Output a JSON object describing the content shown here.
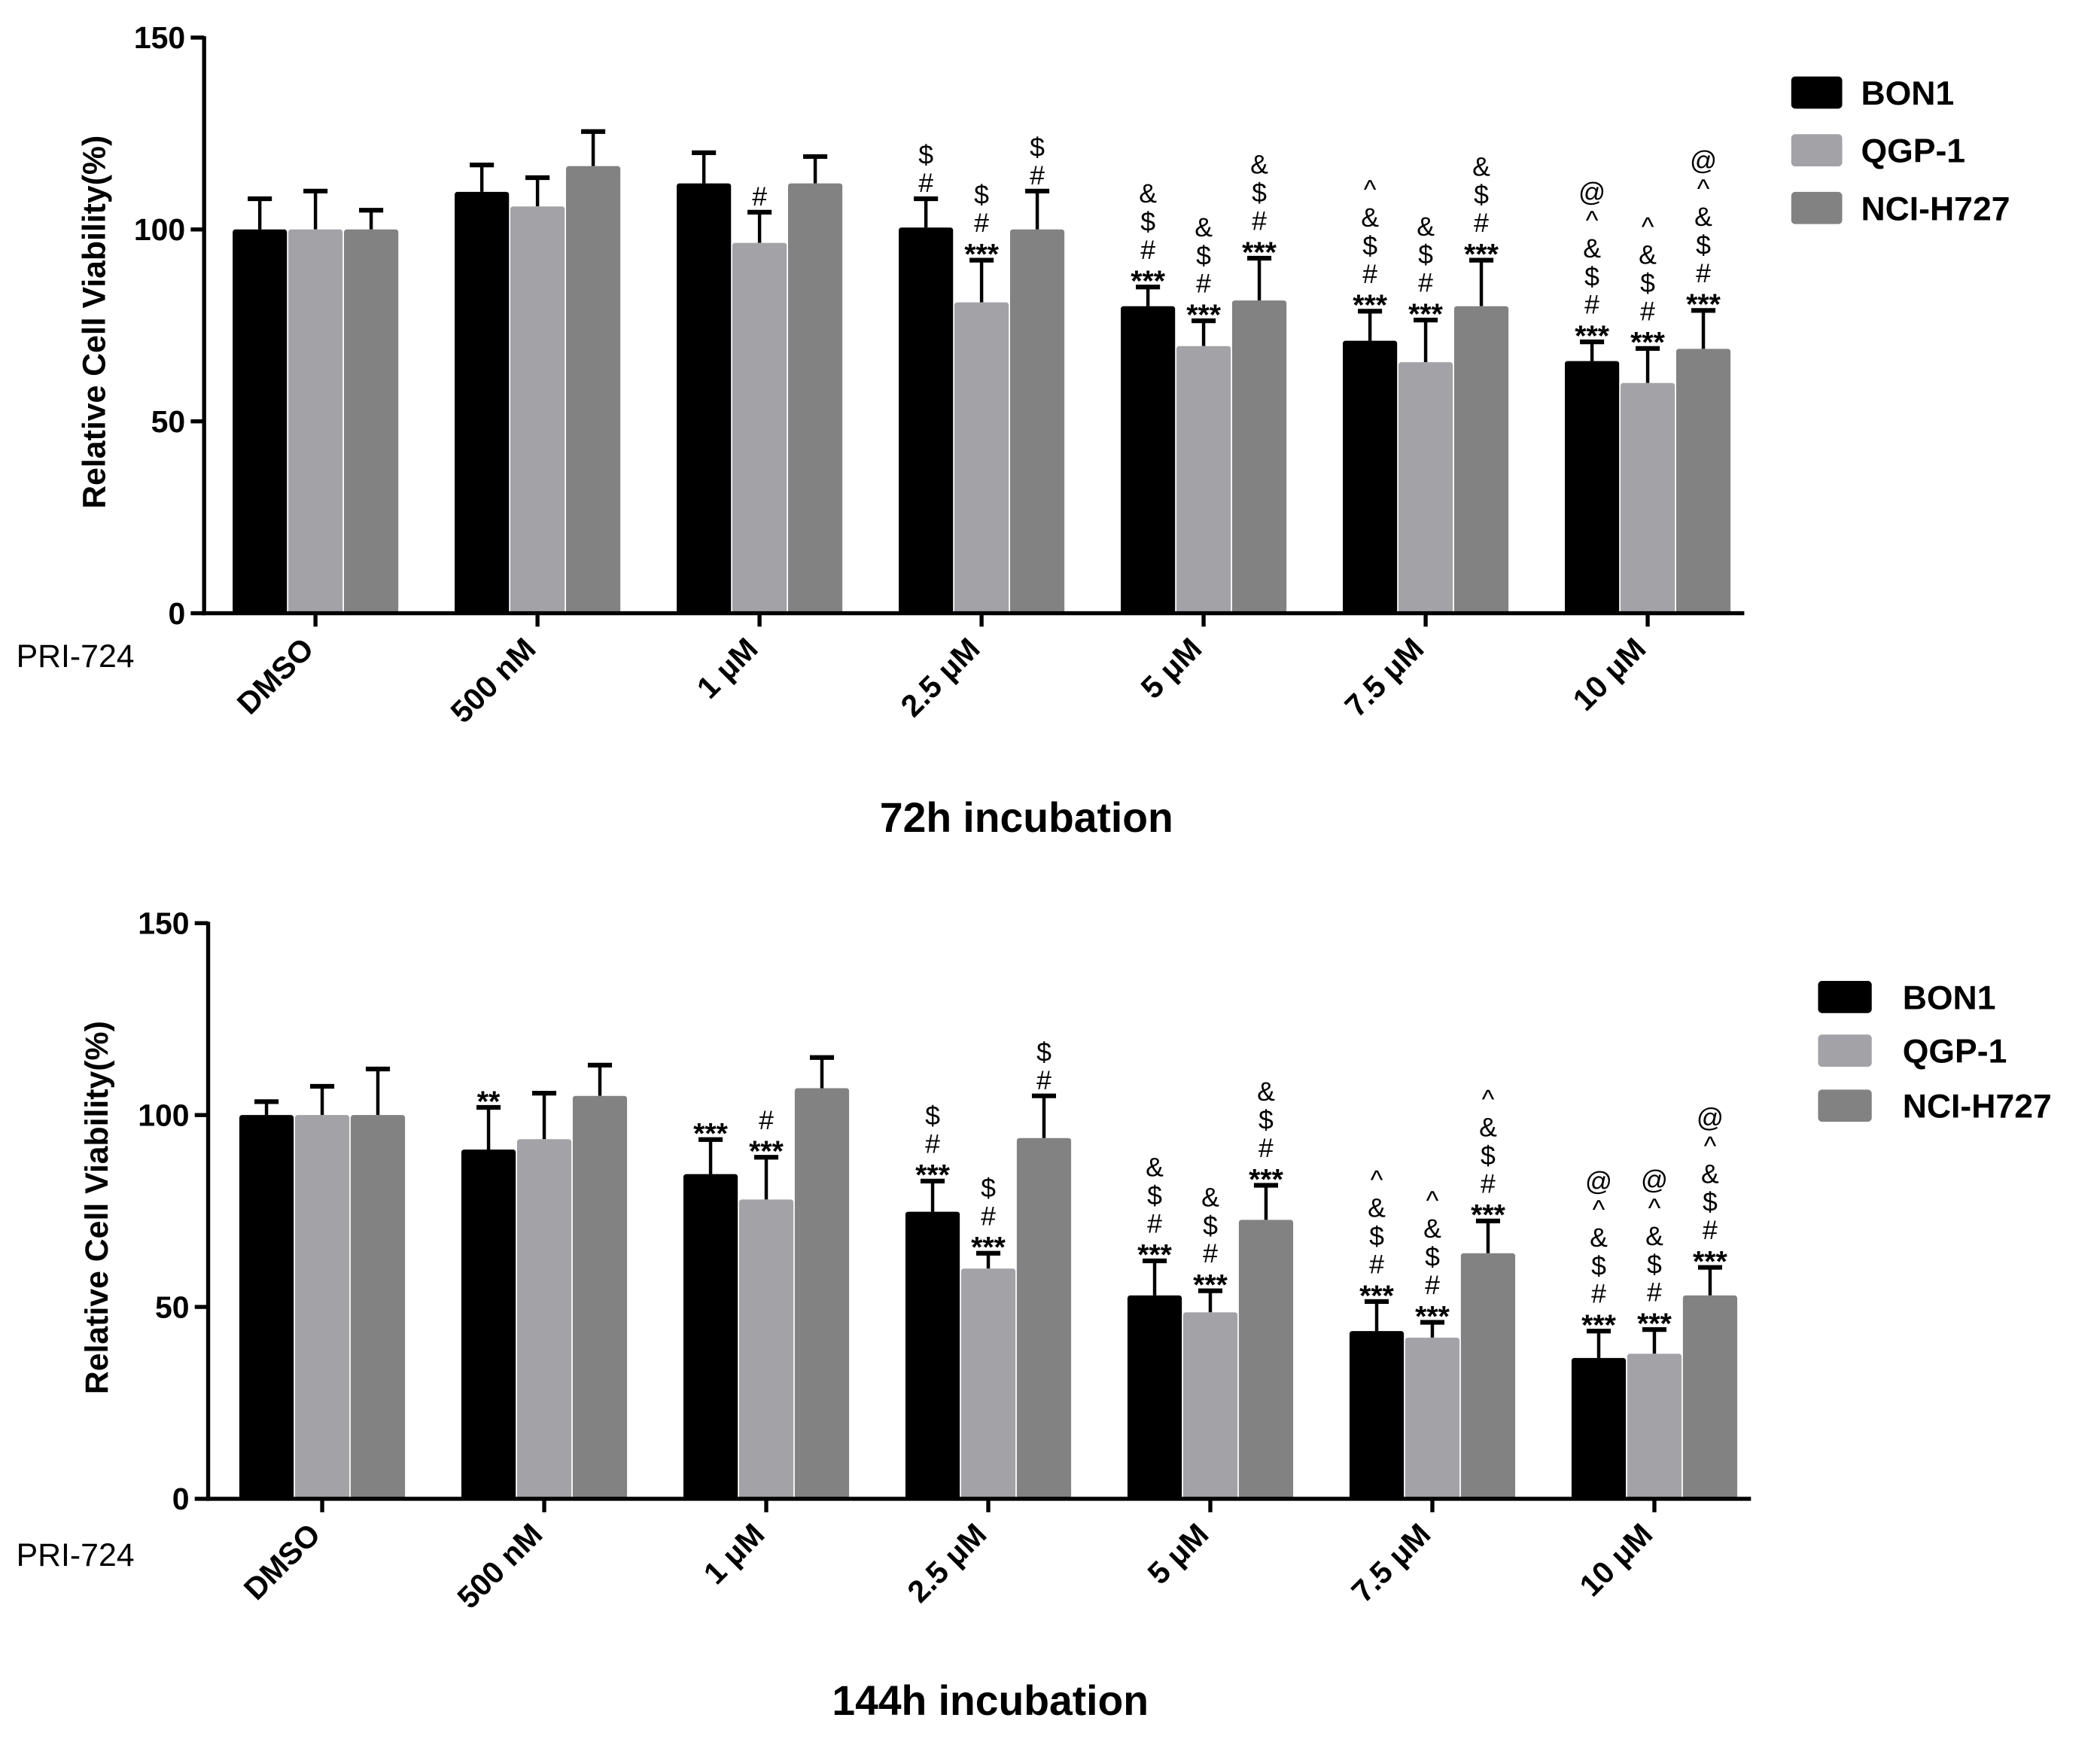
{
  "chart_data": [
    {
      "type": "bar",
      "title": "72h incubation",
      "ylabel": "Relative Cell Viability(%)",
      "xlabel_prefix": "PRI-724",
      "ylim": [
        0,
        150
      ],
      "yticks": [
        0,
        50,
        100,
        150
      ],
      "grid": false,
      "legend_position": "top-right",
      "categories": [
        "DMSO",
        "500 nM",
        "1 μM",
        "2.5 μM",
        "5 μM",
        "7.5 μM",
        "10 μM"
      ],
      "series": [
        {
          "name": "BON1",
          "color": "#000000",
          "values": [
            100,
            109.8,
            112,
            100.5,
            80,
            71,
            65.7
          ],
          "errors": [
            8,
            7,
            8,
            7.5,
            5,
            7.7,
            5
          ],
          "annotations": [
            [],
            [],
            [],
            [
              "#",
              "$"
            ],
            [
              "***",
              "#",
              "$",
              "&"
            ],
            [
              "***",
              "#",
              "$",
              "&",
              "^"
            ],
            [
              "***",
              "#",
              "$",
              "&",
              "^",
              "@"
            ]
          ]
        },
        {
          "name": "QGP-1",
          "color": "#a3a2a7",
          "values": [
            100,
            106,
            96.5,
            81,
            69.6,
            65.4,
            60
          ],
          "errors": [
            10,
            7.5,
            8,
            11,
            6.6,
            11,
            9
          ],
          "annotations": [
            [],
            [],
            [
              "#"
            ],
            [
              "***",
              "#",
              "$"
            ],
            [
              "***",
              "#",
              "$",
              "&"
            ],
            [
              "***",
              "#",
              "$",
              "&"
            ],
            [
              "***",
              "#",
              "$",
              "&",
              "^"
            ]
          ]
        },
        {
          "name": "NCI-H727",
          "color": "#828282",
          "values": [
            100,
            116.5,
            112,
            100,
            81.5,
            80,
            68.9
          ],
          "errors": [
            5,
            9,
            7,
            10,
            11,
            12,
            10
          ],
          "annotations": [
            [],
            [],
            [],
            [
              "#",
              "$"
            ],
            [
              "***",
              "#",
              "$",
              "&"
            ],
            [
              "***",
              "#",
              "$",
              "&"
            ],
            [
              "***",
              "#",
              "$",
              "&",
              "^",
              "@"
            ]
          ]
        }
      ]
    },
    {
      "type": "bar",
      "title": "144h incubation",
      "ylabel": "Relative Cell Viability(%)",
      "xlabel_prefix": "PRI-724",
      "ylim": [
        0,
        150
      ],
      "yticks": [
        0,
        50,
        100,
        150
      ],
      "grid": false,
      "legend_position": "top-right",
      "categories": [
        "DMSO",
        "500 nM",
        "1 μM",
        "2.5 μM",
        "5 μM",
        "7.5 μM",
        "10 μM"
      ],
      "series": [
        {
          "name": "BON1",
          "color": "#000000",
          "values": [
            100,
            91,
            84.6,
            74.8,
            53,
            43.7,
            36.7
          ],
          "errors": [
            3.5,
            11,
            9,
            8,
            9,
            7.7,
            7
          ],
          "annotations": [
            [],
            [
              "**"
            ],
            [
              "***"
            ],
            [
              "***",
              "#",
              "$"
            ],
            [
              "***",
              "#",
              "$",
              "&"
            ],
            [
              "***",
              "#",
              "$",
              "&",
              "^"
            ],
            [
              "***",
              "#",
              "$",
              "&",
              "^",
              "@"
            ]
          ]
        },
        {
          "name": "QGP-1",
          "color": "#a3a2a7",
          "values": [
            100,
            93.7,
            78,
            60,
            48.6,
            42,
            37.8
          ],
          "errors": [
            7.5,
            12,
            11,
            4,
            5.6,
            4,
            6.3
          ],
          "annotations": [
            [],
            [],
            [
              "***",
              "#"
            ],
            [
              "***",
              "#",
              "$"
            ],
            [
              "***",
              "#",
              "$",
              "&"
            ],
            [
              "***",
              "#",
              "$",
              "&",
              "^"
            ],
            [
              "***",
              "#",
              "$",
              "&",
              "^",
              "@"
            ]
          ]
        },
        {
          "name": "NCI-H727",
          "color": "#828282",
          "values": [
            100,
            105,
            107,
            94,
            72.7,
            64,
            53
          ],
          "errors": [
            12,
            8,
            8,
            11,
            9,
            8.4,
            7.3
          ],
          "annotations": [
            [],
            [],
            [],
            [
              "#",
              "$"
            ],
            [
              "***",
              "#",
              "$",
              "&"
            ],
            [
              "***",
              "#",
              "$",
              "&",
              "^"
            ],
            [
              "***",
              "#",
              "$",
              "&",
              "^",
              "@"
            ]
          ]
        }
      ]
    }
  ]
}
